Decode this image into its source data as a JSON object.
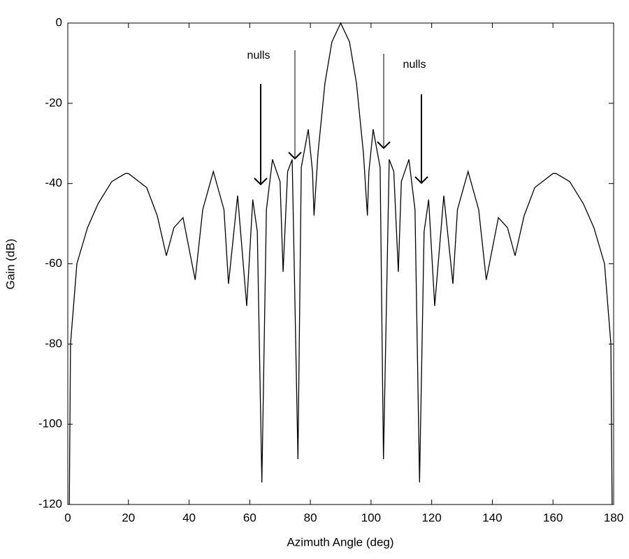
{
  "chart_data": {
    "type": "line",
    "xlabel": "Azimuth Angle (deg)",
    "ylabel": "Gain (dB)",
    "annotations": [
      "nulls",
      "nulls"
    ],
    "color": "#000000",
    "x": [
      0.5,
      0.9,
      3,
      6.5,
      10,
      14.5,
      19,
      20,
      26,
      29.5,
      32.5,
      35,
      38,
      42,
      44.5,
      48,
      51.5,
      53,
      56,
      59,
      61,
      62.5,
      64,
      65.5,
      67.5,
      70,
      71,
      72.5,
      74,
      75.9,
      77,
      79.3,
      80.7,
      81.2,
      82.5,
      84.8,
      87.1,
      90,
      92.9,
      95.2,
      97.5,
      98.8,
      99.3,
      100.7,
      103,
      104.1,
      106,
      107.5,
      109,
      110,
      112.5,
      114.5,
      116,
      117.5,
      119,
      121,
      124,
      127,
      128.5,
      132,
      135.5,
      138,
      142,
      145,
      147.5,
      150.5,
      154,
      160,
      161,
      165.5,
      170,
      173.5,
      177,
      179.1,
      179.5
    ],
    "values": [
      -120,
      -80,
      -60,
      -51,
      -45,
      -39.5,
      -37.5,
      -37.5,
      -41,
      -48,
      -58,
      -51,
      -48.5,
      -64,
      -46.5,
      -37,
      -46.5,
      -65,
      -43,
      -70.5,
      -44,
      -52,
      -114.5,
      -46.5,
      -34,
      -39.5,
      -62,
      -37,
      -34,
      -108.7,
      -36,
      -26.5,
      -37,
      -48,
      -32.5,
      -15,
      -4.7,
      0,
      -4.7,
      -15,
      -32.5,
      -48,
      -37,
      -26.5,
      -36,
      -108.7,
      -34,
      -37,
      -62,
      -39.5,
      -34,
      -46.5,
      -114.5,
      -52,
      -44,
      -70.5,
      -43,
      -65,
      -46.5,
      -37,
      -46.5,
      -64,
      -48.5,
      -51,
      -58,
      -48,
      -41,
      -37.5,
      -37.5,
      -39.5,
      -45,
      -51,
      -60,
      -80,
      -120
    ],
    "xlim": [
      0,
      180
    ],
    "xticks": [
      0,
      20,
      40,
      60,
      80,
      100,
      120,
      140,
      160,
      180
    ],
    "ylim": [
      -120,
      0
    ],
    "yticks": [
      0,
      -20,
      -40,
      -60,
      -80,
      -100,
      -120
    ],
    "grid": false
  }
}
